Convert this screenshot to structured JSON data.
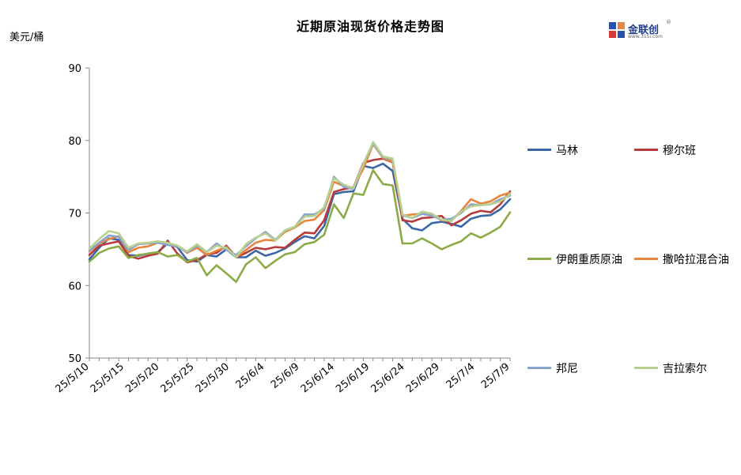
{
  "chart_data": {
    "type": "line",
    "title": "近期原油现货价格走势图",
    "ylabel": "美元/桶",
    "ylim": [
      50,
      90
    ],
    "yticks": [
      50,
      60,
      70,
      80,
      90
    ],
    "x_tick_labels": [
      "25/5/10",
      "25/5/15",
      "25/5/20",
      "25/5/25",
      "25/5/30",
      "25/6/4",
      "25/6/9",
      "25/6/14",
      "25/6/19",
      "25/6/24",
      "25/6/29",
      "25/7/4",
      "25/7/9"
    ],
    "x": [
      "5/10",
      "5/12",
      "5/13",
      "5/14",
      "5/15",
      "5/16",
      "5/17",
      "5/19",
      "5/20",
      "5/21",
      "5/22",
      "5/23",
      "5/27",
      "5/28",
      "5/29",
      "5/30",
      "6/2",
      "6/3",
      "6/4",
      "6/5",
      "6/6",
      "6/9",
      "6/10",
      "6/11",
      "6/12",
      "6/13",
      "6/16",
      "6/17",
      "6/18",
      "6/19",
      "6/20",
      "6/23",
      "6/24",
      "6/25",
      "6/26",
      "6/27",
      "6/30",
      "7/1",
      "7/2",
      "7/3",
      "7/4",
      "7/7",
      "7/8",
      "7/9"
    ],
    "series": [
      {
        "name": "马林",
        "color": "#3a67a5",
        "values": [
          63.6,
          65.2,
          66.5,
          66.3,
          64.2,
          64.1,
          64.4,
          64.6,
          65.8,
          65.3,
          63.5,
          63.3,
          64.2,
          64.0,
          65.0,
          63.9,
          63.9,
          64.8,
          64.1,
          64.5,
          65.1,
          66.0,
          66.8,
          66.5,
          68.2,
          72.6,
          72.9,
          73.0,
          76.5,
          76.2,
          76.8,
          75.8,
          69.2,
          67.9,
          67.6,
          68.6,
          68.8,
          68.5,
          68.1,
          69.2,
          69.6,
          69.7,
          70.5,
          71.9
        ]
      },
      {
        "name": "穆尔班",
        "color": "#b83b3b",
        "values": [
          64.2,
          65.5,
          65.8,
          66.1,
          64.1,
          63.7,
          64.1,
          64.4,
          66.2,
          64.4,
          63.2,
          63.5,
          64.3,
          64.5,
          65.5,
          63.9,
          64.5,
          65.2,
          65.0,
          65.3,
          65.2,
          66.3,
          67.3,
          67.2,
          69.0,
          72.9,
          73.3,
          73.5,
          76.9,
          77.3,
          77.5,
          77.0,
          69.0,
          68.8,
          69.3,
          69.4,
          69.6,
          68.3,
          69.0,
          69.9,
          70.3,
          70.1,
          71.2,
          73.0
        ]
      },
      {
        "name": "伊朗重质原油",
        "color": "#8aab46",
        "values": [
          63.3,
          64.5,
          65.1,
          65.4,
          63.8,
          64.2,
          64.4,
          64.6,
          64.0,
          64.2,
          63.3,
          63.8,
          61.4,
          62.8,
          61.7,
          60.5,
          62.9,
          63.9,
          62.4,
          63.4,
          64.3,
          64.6,
          65.7,
          66.0,
          67.0,
          71.2,
          69.3,
          72.7,
          72.5,
          75.9,
          74.0,
          73.8,
          65.8,
          65.8,
          66.5,
          65.8,
          65.0,
          65.6,
          66.1,
          67.2,
          66.6,
          67.3,
          68.1,
          70.1
        ]
      },
      {
        "name": "撒哈拉混合油",
        "color": "#e8863b",
        "values": [
          64.7,
          65.8,
          66.4,
          66.8,
          64.6,
          65.2,
          65.4,
          65.9,
          65.8,
          65.5,
          64.5,
          65.2,
          64.2,
          64.8,
          65.3,
          63.9,
          64.9,
          65.9,
          66.3,
          66.2,
          67.4,
          68.0,
          68.9,
          69.1,
          70.4,
          74.3,
          73.7,
          73.5,
          76.1,
          79.5,
          77.6,
          77.1,
          69.6,
          69.8,
          69.9,
          69.8,
          69.0,
          68.9,
          70.3,
          71.9,
          71.3,
          71.6,
          72.4,
          72.8
        ]
      },
      {
        "name": "邦尼",
        "color": "#8aa3cd",
        "values": [
          64.8,
          65.9,
          66.9,
          66.7,
          64.9,
          65.7,
          65.8,
          65.9,
          65.6,
          65.4,
          64.6,
          65.5,
          64.6,
          65.8,
          64.9,
          64.2,
          65.4,
          66.5,
          67.4,
          66.3,
          67.6,
          68.1,
          69.8,
          69.8,
          70.6,
          75.0,
          73.6,
          73.3,
          76.8,
          79.6,
          77.7,
          77.4,
          69.7,
          69.3,
          69.9,
          69.6,
          69.1,
          69.2,
          70.0,
          71.2,
          71.1,
          71.2,
          71.9,
          72.4
        ]
      },
      {
        "name": "吉拉索尔",
        "color": "#b7d191",
        "values": [
          65.1,
          66.4,
          67.5,
          67.2,
          65.2,
          65.8,
          65.9,
          66.1,
          65.9,
          65.5,
          64.7,
          65.7,
          64.6,
          65.5,
          65.2,
          63.9,
          65.7,
          66.6,
          67.2,
          66.2,
          67.6,
          68.1,
          69.5,
          69.6,
          70.8,
          74.8,
          73.9,
          73.4,
          76.7,
          79.8,
          77.8,
          77.5,
          69.8,
          69.3,
          70.2,
          69.9,
          69.1,
          68.9,
          70.2,
          70.9,
          71.1,
          71.2,
          71.6,
          72.6
        ]
      }
    ],
    "legend": "right"
  },
  "logo": {
    "name": "金联创",
    "sub": "www.315i.com",
    "reg": "®"
  }
}
